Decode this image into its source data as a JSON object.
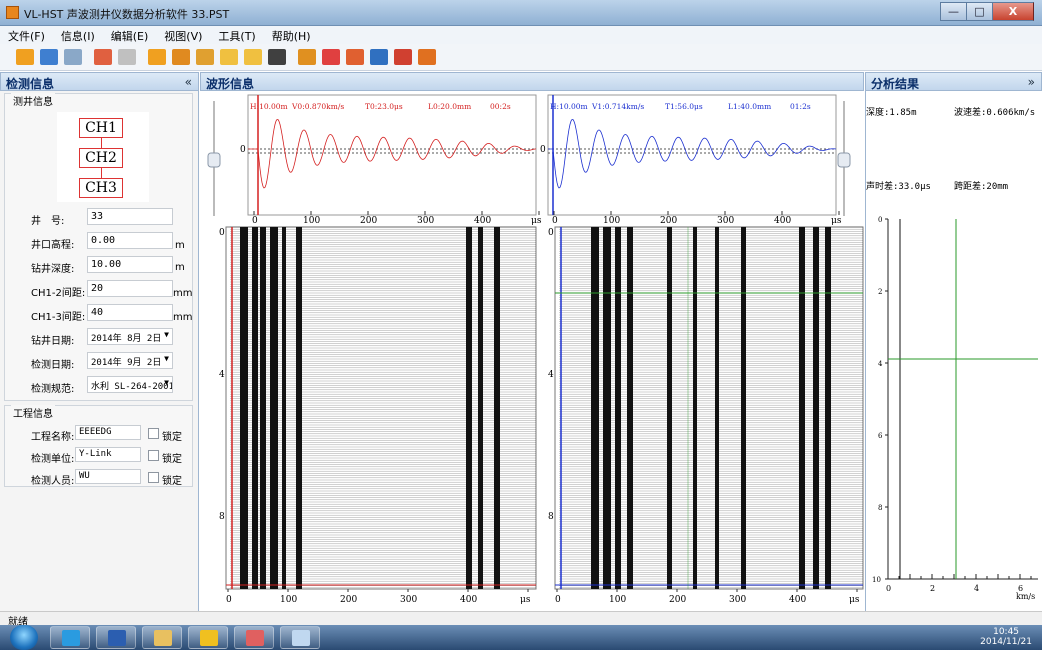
{
  "window": {
    "title": "VL-HST 声波测井仪数据分析软件  33.PST",
    "min_label": "—",
    "max_label": "□",
    "close_label": "X"
  },
  "menu": [
    {
      "label": "文件(F)"
    },
    {
      "label": "信息(I)"
    },
    {
      "label": "编辑(E)"
    },
    {
      "label": "视图(V)"
    },
    {
      "label": "工具(T)"
    },
    {
      "label": "帮助(H)"
    }
  ],
  "toolbar": [
    {
      "icon": "open-folder-icon",
      "color": "#f0a020"
    },
    {
      "icon": "save-icon",
      "color": "#3f7fd0"
    },
    {
      "icon": "save-as-icon",
      "color": "#8aa8c8"
    },
    {
      "icon": "undo-icon",
      "color": "#e06040"
    },
    {
      "icon": "redo-icon",
      "color": "#c0c0c0"
    },
    {
      "icon": "filter-icon",
      "color": "#f0a020"
    },
    {
      "icon": "wave-tool-icon",
      "color": "#e08a20"
    },
    {
      "icon": "wave-tool2-icon",
      "color": "#e0a030"
    },
    {
      "icon": "peak-icon",
      "color": "#f0c040"
    },
    {
      "icon": "export-icon",
      "color": "#f0c040"
    },
    {
      "icon": "auto-icon",
      "color": "#404040"
    },
    {
      "icon": "settings-icon",
      "color": "#e09020"
    },
    {
      "icon": "print-icon",
      "color": "#e04040"
    },
    {
      "icon": "print-preview-icon",
      "color": "#e06030"
    },
    {
      "icon": "word-export-icon",
      "color": "#3070c0"
    },
    {
      "icon": "pdf-export-icon",
      "color": "#d04030"
    },
    {
      "icon": "help-icon",
      "color": "#e07020"
    }
  ],
  "left_panel": {
    "title": "检测信息",
    "collapse_label": "«",
    "well_group": {
      "title": "测井信息",
      "channels": [
        "CH1",
        "CH2",
        "CH3"
      ],
      "fields": [
        {
          "label": "井　号:",
          "value": "33",
          "unit": ""
        },
        {
          "label": "井口高程:",
          "value": "0.00",
          "unit": "m"
        },
        {
          "label": "钻井深度:",
          "value": "10.00",
          "unit": "m"
        },
        {
          "label": "CH1-2间距:",
          "value": "20",
          "unit": "mm"
        },
        {
          "label": "CH1-3间距:",
          "value": "40",
          "unit": "mm"
        },
        {
          "label": "钻井日期:",
          "value": "2014年  8月  2日",
          "unit": ""
        },
        {
          "label": "检测日期:",
          "value": "2014年  9月  2日",
          "unit": ""
        },
        {
          "label": "检测规范:",
          "value": "水利 SL-264-2001",
          "unit": ""
        }
      ]
    },
    "project_group": {
      "title": "工程信息",
      "lock_label": "锁定",
      "fields": [
        {
          "label": "工程名称:",
          "value": "EEEEDG"
        },
        {
          "label": "检测单位:",
          "value": "Y-Link"
        },
        {
          "label": "检测人员:",
          "value": "WU"
        }
      ]
    }
  },
  "center_panel": {
    "title": "波形信息",
    "wave1": {
      "params": [
        "H:10.00m",
        "V0:0.870km/s",
        "T0:23.0μs",
        "L0:20.0mm",
        "00:2s"
      ],
      "color": "#d42020",
      "x_ticks": [
        "0",
        "100",
        "200",
        "300",
        "400",
        "μs"
      ],
      "zero_label": "0"
    },
    "wave2": {
      "params": [
        "H:10.00m",
        "V1:0.714km/s",
        "T1:56.0μs",
        "L1:40.0mm",
        "01:2s"
      ],
      "color": "#1c30d0",
      "x_ticks": [
        "0",
        "100",
        "200",
        "300",
        "400",
        "μs"
      ],
      "zero_label": "0"
    },
    "section": {
      "depth_ticks": [
        "0",
        "4",
        "8"
      ],
      "x_ticks": [
        "0",
        "100",
        "200",
        "300",
        "400",
        "μs"
      ]
    }
  },
  "right_panel": {
    "title": "分析结果",
    "expand_label": "»",
    "results": [
      {
        "text": "深度:1.85m"
      },
      {
        "text": "波速差:0.606km/s"
      },
      {
        "text": "声时差:33.0μs"
      },
      {
        "text": "跨距差:20mm"
      }
    ],
    "depth_ticks": [
      "0",
      "2",
      "4",
      "6",
      "8",
      "10"
    ],
    "x_ticks": [
      "0",
      "2",
      "4",
      "6"
    ],
    "x_unit": "km/s"
  },
  "status": {
    "text": "就绪"
  },
  "taskbar": {
    "apps": [
      {
        "icon": "ie-icon",
        "color": "#2a9be0"
      },
      {
        "icon": "word-icon",
        "color": "#2b5eb0"
      },
      {
        "icon": "explorer-icon",
        "color": "#e8c060"
      },
      {
        "icon": "qq-icon",
        "color": "#f0c020"
      },
      {
        "icon": "vlhst-icon",
        "color": "#e06060"
      },
      {
        "icon": "paint-icon",
        "color": "#c0d8f0"
      }
    ],
    "time": "10:45",
    "date": "2014/11/21"
  }
}
